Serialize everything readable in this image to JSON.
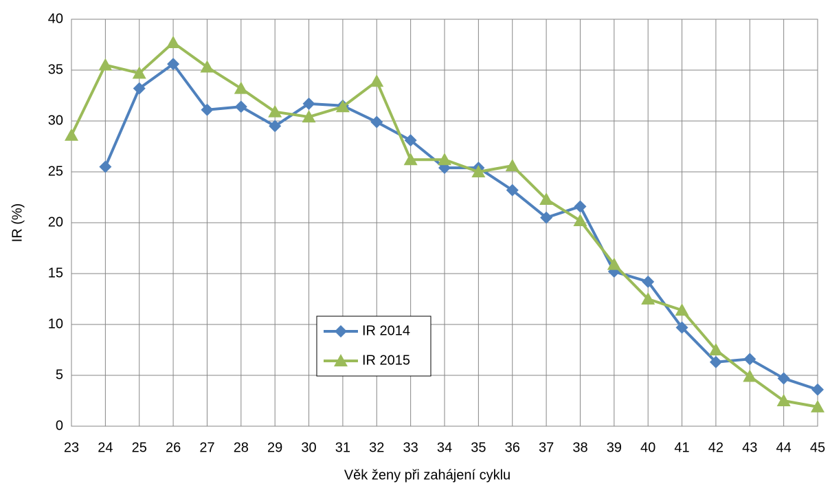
{
  "chart_data": {
    "type": "line",
    "x_label": "Věk ženy při zahájení cyklu",
    "y_label": "IR (%)",
    "x": [
      23,
      24,
      25,
      26,
      27,
      28,
      29,
      30,
      31,
      32,
      33,
      34,
      35,
      36,
      37,
      38,
      39,
      40,
      41,
      42,
      43,
      44,
      45
    ],
    "xlim": [
      23,
      45
    ],
    "xticks": [
      23,
      24,
      25,
      26,
      27,
      28,
      29,
      30,
      31,
      32,
      33,
      34,
      35,
      36,
      37,
      38,
      39,
      40,
      41,
      42,
      43,
      44,
      45
    ],
    "ylim": [
      0,
      40
    ],
    "yticks": [
      0,
      5,
      10,
      15,
      20,
      25,
      30,
      35,
      40
    ],
    "grid": true,
    "series": [
      {
        "name": "IR 2014",
        "color": "#4f81bd",
        "marker": "diamond",
        "values": [
          null,
          25.5,
          33.2,
          35.6,
          31.1,
          31.4,
          29.5,
          31.7,
          31.5,
          29.9,
          28.1,
          25.4,
          25.4,
          23.2,
          20.5,
          21.6,
          15.2,
          14.2,
          9.7,
          6.3,
          6.6,
          4.7,
          3.6
        ]
      },
      {
        "name": "IR 2015",
        "color": "#9bbb59",
        "marker": "triangle",
        "values": [
          28.6,
          35.5,
          34.7,
          37.7,
          35.3,
          33.2,
          30.9,
          30.4,
          31.4,
          33.9,
          26.2,
          26.2,
          25.0,
          25.6,
          22.3,
          20.2,
          15.9,
          12.5,
          11.4,
          7.5,
          4.9,
          2.5,
          1.9
        ]
      }
    ]
  }
}
